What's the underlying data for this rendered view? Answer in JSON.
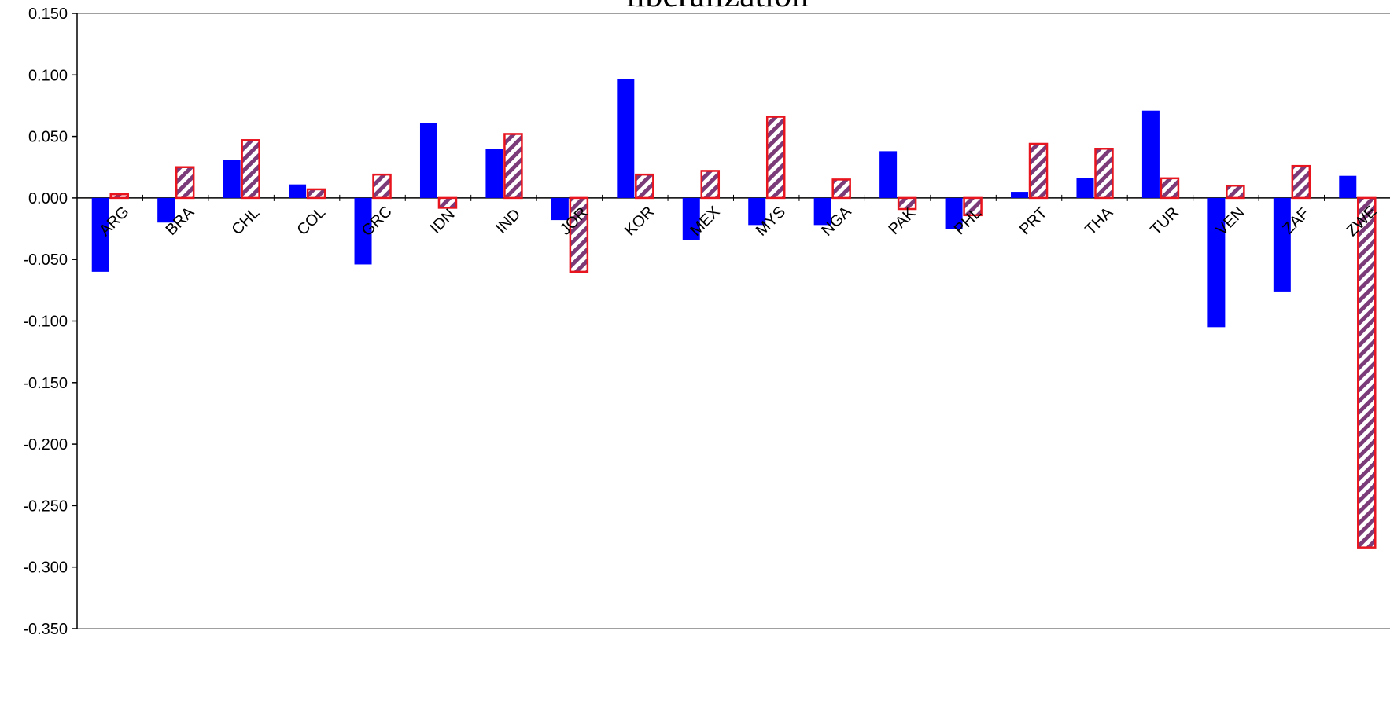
{
  "chart_data": {
    "type": "bar",
    "title": "liberalization",
    "xlabel": "",
    "ylabel": "",
    "ylim": [
      -0.35,
      0.15
    ],
    "yticks": [
      "0.150",
      "0.100",
      "0.050",
      "0.000",
      "-0.050",
      "-0.100",
      "-0.150",
      "-0.200",
      "-0.250",
      "-0.300",
      "-0.350"
    ],
    "categories": [
      "ARG",
      "BRA",
      "CHL",
      "COL",
      "GRC",
      "IDN",
      "IND",
      "JOR",
      "KOR",
      "MEX",
      "MYS",
      "NGA",
      "PAK",
      "PHL",
      "PRT",
      "THA",
      "TUR",
      "VEN",
      "ZAF",
      "ZWE"
    ],
    "series": [
      {
        "style": "solid",
        "color": "#0000ff",
        "values": [
          -0.06,
          -0.02,
          0.031,
          0.011,
          -0.054,
          0.061,
          0.04,
          -0.018,
          0.097,
          -0.034,
          -0.022,
          -0.022,
          0.038,
          -0.025,
          0.005,
          0.016,
          0.071,
          -0.105,
          -0.076,
          0.018
        ]
      },
      {
        "style": "hatched",
        "color": "#e8141e",
        "hatch_color": "#7b3a78",
        "values": [
          0.003,
          0.025,
          0.047,
          0.007,
          0.019,
          -0.008,
          0.052,
          -0.06,
          0.019,
          0.022,
          0.066,
          0.015,
          -0.009,
          -0.014,
          0.044,
          0.04,
          0.016,
          0.01,
          0.026,
          -0.284
        ]
      }
    ],
    "grid": false,
    "legend": "none"
  }
}
